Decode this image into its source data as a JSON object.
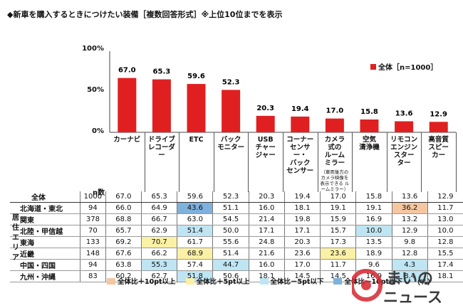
{
  "title": "◆新車を購入するときにつけたい装備［複数回答形式］※上位10位までを表示",
  "chart_data": {
    "type": "bar",
    "categories": [
      "カーナビ",
      "ドライブレコーダー",
      "ETC",
      "バックモニター",
      "USBチャージャー",
      "コーナーセンサー・バックセンサー",
      "カメラ式のルームミラー",
      "空気清浄機",
      "リモコンエンジンスターター",
      "高音質スピーカー"
    ],
    "category_lines": [
      [
        "カーナビ"
      ],
      [
        "ドライブ",
        "レコーダー"
      ],
      [
        "ETC"
      ],
      [
        "バック",
        "モニター"
      ],
      [
        "USB",
        "チャー",
        "ジャー"
      ],
      [
        "コーナー",
        "センサー・",
        "バック",
        "センサー"
      ],
      [
        "カメラ",
        "式の",
        "ルーム",
        "ミラー"
      ],
      [
        "空気",
        "清浄機"
      ],
      [
        "リモコン",
        "エンジン",
        "スター",
        "ター"
      ],
      [
        "高音質",
        "スピー",
        "カー"
      ]
    ],
    "category_note": "（車両後方の カメラ映像を 表示できる ルームミラー）",
    "series": [
      {
        "name": "全体［n=1000］",
        "values": [
          67.0,
          65.3,
          59.6,
          52.3,
          20.3,
          19.4,
          17.0,
          15.8,
          13.6,
          12.9
        ]
      }
    ],
    "value_labels": [
      "67.0",
      "65.3",
      "59.6",
      "52.3",
      "20.3",
      "19.4",
      "17.0",
      "15.8",
      "13.6",
      "12.9"
    ],
    "ylim": [
      0,
      100
    ],
    "yticks": [
      "0%",
      "50%",
      "100%"
    ],
    "bar_color": "#e02020",
    "legend_position": "top-right"
  },
  "table": {
    "n_header": "n数",
    "region_label": "居住エリア",
    "unit": "（%）",
    "rows": [
      {
        "label": "全体",
        "n": "1000",
        "values": [
          "67.0",
          "65.3",
          "59.6",
          "52.3",
          "20.3",
          "19.4",
          "17.0",
          "15.8",
          "13.6",
          "12.9"
        ],
        "hl": [
          "",
          "",
          "",
          "",
          "",
          "",
          "",
          "",
          "",
          ""
        ]
      },
      {
        "label": "北海道・東北",
        "n": "94",
        "values": [
          "66.0",
          "64.9",
          "43.6",
          "51.1",
          "16.0",
          "18.1",
          "19.1",
          "19.1",
          "36.2",
          "11.7"
        ],
        "hl": [
          "",
          "",
          "blue",
          "",
          "",
          "",
          "",
          "",
          "red",
          ""
        ]
      },
      {
        "label": "関東",
        "n": "378",
        "values": [
          "68.8",
          "66.7",
          "63.0",
          "54.5",
          "21.4",
          "19.8",
          "15.9",
          "16.9",
          "13.2",
          "13.0"
        ],
        "hl": [
          "",
          "",
          "",
          "",
          "",
          "",
          "",
          "",
          "",
          ""
        ]
      },
      {
        "label": "北陸・甲信越",
        "n": "70",
        "values": [
          "65.7",
          "62.9",
          "51.4",
          "50.0",
          "17.1",
          "17.1",
          "15.7",
          "10.0",
          "12.9",
          "10.0"
        ],
        "hl": [
          "",
          "",
          "lblue",
          "",
          "",
          "",
          "",
          "lblue",
          "",
          ""
        ]
      },
      {
        "label": "東海",
        "n": "133",
        "values": [
          "69.2",
          "70.7",
          "61.7",
          "55.6",
          "24.8",
          "20.3",
          "17.3",
          "13.5",
          "9.8",
          "12.8"
        ],
        "hl": [
          "",
          "yellow",
          "",
          "",
          "",
          "",
          "",
          "",
          "",
          ""
        ]
      },
      {
        "label": "近畿",
        "n": "148",
        "values": [
          "67.6",
          "66.2",
          "68.9",
          "51.4",
          "21.6",
          "23.6",
          "23.6",
          "18.9",
          "12.8",
          "15.5"
        ],
        "hl": [
          "",
          "",
          "yellow",
          "",
          "",
          "",
          "yellow",
          "",
          "",
          ""
        ]
      },
      {
        "label": "中国・四国",
        "n": "94",
        "values": [
          "63.8",
          "55.3",
          "57.4",
          "44.7",
          "16.0",
          "17.0",
          "11.7",
          "9.6",
          "4.3",
          "17.4"
        ],
        "hl": [
          "",
          "lblue",
          "",
          "lblue",
          "",
          "",
          "",
          "",
          "lblue",
          ""
        ]
      },
      {
        "label": "九州・沖縄",
        "n": "83",
        "values": [
          "60.2",
          "62.7",
          "51.8",
          "50.6",
          "18.1",
          "14.5",
          "14.5",
          "16.9",
          "8.4",
          "18.1"
        ],
        "hl": [
          "",
          "",
          "lblue",
          "",
          "",
          "",
          "",
          "",
          "lblue",
          ""
        ]
      }
    ]
  },
  "keys": [
    {
      "label": "全体比＋10pt以上",
      "color": "#f4c7a0"
    },
    {
      "label": "全体比＋5pt以上",
      "color": "#fbf1a6"
    },
    {
      "label": "全体比－5pt以下",
      "color": "#bfe5f2"
    },
    {
      "label": "全体比－10pt以下",
      "color": "#7fb1dd"
    }
  ],
  "logo": {
    "top": "まいの",
    "bottom": "ニュース"
  }
}
